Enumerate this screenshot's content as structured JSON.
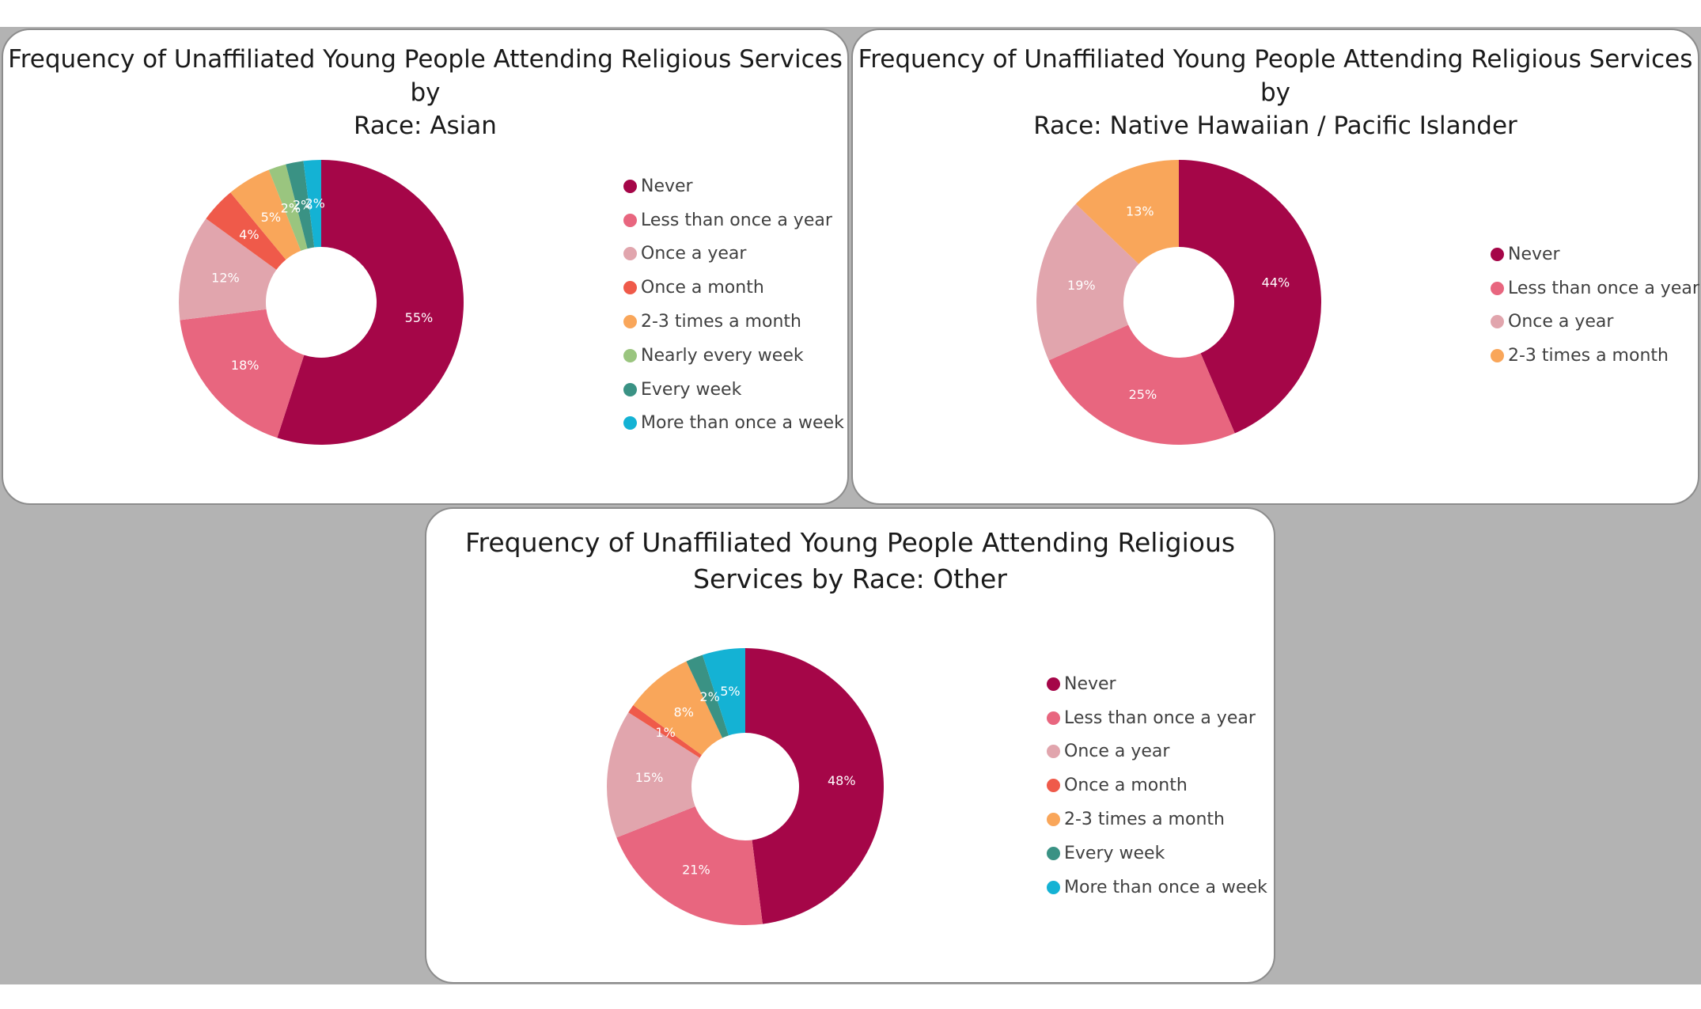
{
  "colors": {
    "never": "#a50648",
    "less_than_once_a_year": "#e8667f",
    "once_a_year": "#e1a5ad",
    "once_a_month": "#ef5a4a",
    "two_three_times_a_month": "#f9a65a",
    "nearly_every_week": "#9ac57f",
    "every_week": "#3a9284",
    "more_than_once_a_week": "#14b2d4"
  },
  "chart_data": [
    {
      "type": "pie",
      "style": "donut",
      "title": [
        "Frequency of Unaffiliated Young People Attending Religious Services by",
        "Race: Asian"
      ],
      "legend_position": "right",
      "categories": [
        "Never",
        "Less than once a year",
        "Once a year",
        "Once a month",
        "2-3 times a month",
        "Nearly every week",
        "Every week",
        "More than once a week"
      ],
      "values": [
        55,
        18,
        12,
        4,
        5,
        2,
        2,
        2
      ],
      "labels": [
        "55%",
        "18%",
        "12%",
        "4%",
        "5%",
        "2%",
        "2%",
        "2%"
      ],
      "color_keys": [
        "never",
        "less_than_once_a_year",
        "once_a_year",
        "once_a_month",
        "two_three_times_a_month",
        "nearly_every_week",
        "every_week",
        "more_than_once_a_week"
      ]
    },
    {
      "type": "pie",
      "style": "donut",
      "title": [
        "Frequency of Unaffiliated Young People Attending Religious Services by",
        "Race: Native Hawaiian / Pacific Islander"
      ],
      "legend_position": "right",
      "categories": [
        "Never",
        "Less than once a year",
        "Once a year",
        "2-3 times a month"
      ],
      "values": [
        44,
        25,
        19,
        13
      ],
      "labels": [
        "44%",
        "25%",
        "19%",
        "13%"
      ],
      "color_keys": [
        "never",
        "less_than_once_a_year",
        "once_a_year",
        "two_three_times_a_month"
      ]
    },
    {
      "type": "pie",
      "style": "donut",
      "title": [
        "Frequency of Unaffiliated Young People Attending Religious",
        "Services by Race: Other"
      ],
      "legend_position": "right",
      "categories": [
        "Never",
        "Less than once a year",
        "Once a year",
        "Once a month",
        "2-3 times a month",
        "Every week",
        "More than once a week"
      ],
      "values": [
        48,
        21,
        15,
        1,
        8,
        2,
        5
      ],
      "labels": [
        "48%",
        "21%",
        "15%",
        "1%",
        "8%",
        "2%",
        "5%"
      ],
      "color_keys": [
        "never",
        "less_than_once_a_year",
        "once_a_year",
        "once_a_month",
        "two_three_times_a_month",
        "every_week",
        "more_than_once_a_week"
      ]
    }
  ]
}
